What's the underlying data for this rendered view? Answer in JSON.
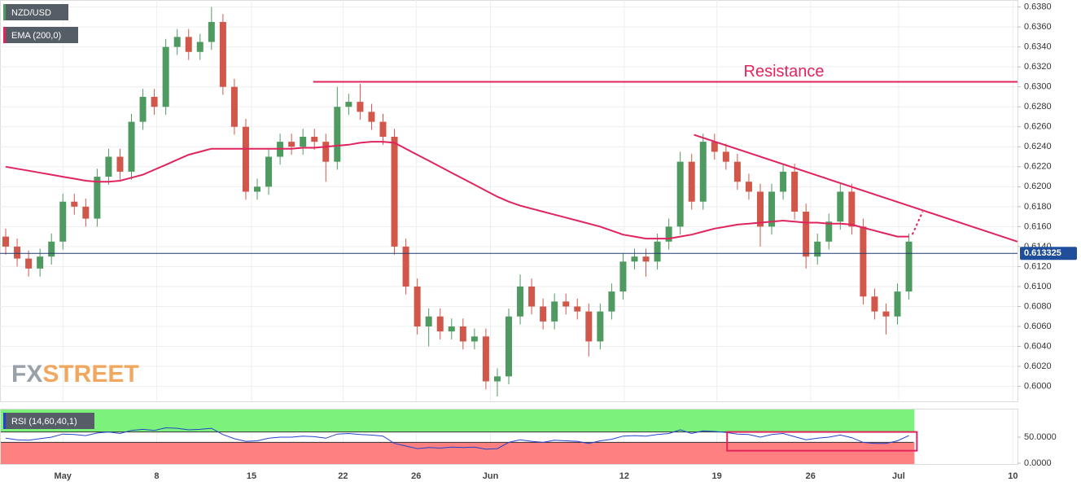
{
  "chart_data": {
    "type": "candlestick",
    "symbol": "NZD/USD",
    "up_color": "#4f9a60",
    "down_color": "#d2574b",
    "ohlc": {
      "open": [
        0.615,
        0.614,
        0.6128,
        0.6118,
        0.613,
        0.6145,
        0.6185,
        0.618,
        0.6168,
        0.621,
        0.623,
        0.6215,
        0.6265,
        0.629,
        0.628,
        0.634,
        0.635,
        0.6335,
        0.6345,
        0.6365,
        0.63,
        0.626,
        0.6195,
        0.62,
        0.623,
        0.6245,
        0.624,
        0.625,
        0.6245,
        0.6225,
        0.628,
        0.6285,
        0.6275,
        0.6265,
        0.625,
        0.614,
        0.61,
        0.606,
        0.607,
        0.6055,
        0.606,
        0.6045,
        0.605,
        0.6005,
        0.601,
        0.607,
        0.61,
        0.608,
        0.6065,
        0.6085,
        0.608,
        0.6075,
        0.6045,
        0.6075,
        0.6095,
        0.6125,
        0.613,
        0.6125,
        0.6145,
        0.616,
        0.6225,
        0.6185,
        0.6245,
        0.6235,
        0.6225,
        0.6205,
        0.6195,
        0.616,
        0.6195,
        0.6215,
        0.6175,
        0.613,
        0.6145,
        0.6165,
        0.6195,
        0.616,
        0.609,
        0.6075,
        0.607,
        0.6095
      ],
      "high": [
        0.6158,
        0.6148,
        0.6136,
        0.6138,
        0.6153,
        0.6193,
        0.6193,
        0.6188,
        0.6218,
        0.6238,
        0.6238,
        0.6273,
        0.6298,
        0.6298,
        0.6348,
        0.6358,
        0.6358,
        0.6353,
        0.638,
        0.6373,
        0.6308,
        0.6268,
        0.6208,
        0.6238,
        0.6253,
        0.6253,
        0.6258,
        0.6258,
        0.6253,
        0.63,
        0.6293,
        0.6303,
        0.6283,
        0.6273,
        0.6258,
        0.6148,
        0.6108,
        0.6078,
        0.6078,
        0.6068,
        0.6068,
        0.6058,
        0.6058,
        0.6018,
        0.6078,
        0.6112,
        0.6108,
        0.6088,
        0.6093,
        0.6093,
        0.6088,
        0.6083,
        0.6083,
        0.6103,
        0.6133,
        0.6138,
        0.6138,
        0.6153,
        0.6168,
        0.6235,
        0.6233,
        0.6253,
        0.6253,
        0.6243,
        0.6233,
        0.6213,
        0.6203,
        0.6203,
        0.6223,
        0.6223,
        0.6183,
        0.6153,
        0.6173,
        0.6203,
        0.6203,
        0.6168,
        0.6098,
        0.6083,
        0.6103,
        0.6153
      ],
      "low": [
        0.6132,
        0.612,
        0.611,
        0.611,
        0.6122,
        0.6137,
        0.6172,
        0.616,
        0.616,
        0.6202,
        0.6207,
        0.6207,
        0.6257,
        0.6272,
        0.6272,
        0.6332,
        0.6327,
        0.6327,
        0.6337,
        0.6292,
        0.6252,
        0.6187,
        0.6187,
        0.6192,
        0.6222,
        0.6232,
        0.6232,
        0.6237,
        0.6205,
        0.6217,
        0.6272,
        0.6267,
        0.6257,
        0.6242,
        0.6132,
        0.6092,
        0.6052,
        0.604,
        0.6047,
        0.6047,
        0.6037,
        0.6037,
        0.5997,
        0.599,
        0.6002,
        0.6062,
        0.6072,
        0.6057,
        0.6057,
        0.6072,
        0.6067,
        0.603,
        0.6037,
        0.6067,
        0.6087,
        0.6117,
        0.611,
        0.6117,
        0.6137,
        0.6152,
        0.6177,
        0.6177,
        0.6227,
        0.6217,
        0.6197,
        0.6187,
        0.614,
        0.6152,
        0.6187,
        0.6167,
        0.6118,
        0.6122,
        0.6137,
        0.6157,
        0.6152,
        0.6082,
        0.6067,
        0.6052,
        0.6062,
        0.6087
      ],
      "close": [
        0.614,
        0.6128,
        0.6118,
        0.613,
        0.6145,
        0.6185,
        0.618,
        0.6168,
        0.621,
        0.623,
        0.6215,
        0.6265,
        0.629,
        0.628,
        0.634,
        0.635,
        0.6335,
        0.6345,
        0.6365,
        0.63,
        0.626,
        0.6195,
        0.62,
        0.623,
        0.6245,
        0.624,
        0.625,
        0.6245,
        0.6225,
        0.628,
        0.6285,
        0.6275,
        0.6265,
        0.625,
        0.614,
        0.61,
        0.606,
        0.607,
        0.6055,
        0.606,
        0.6045,
        0.605,
        0.6005,
        0.601,
        0.607,
        0.61,
        0.608,
        0.6065,
        0.6085,
        0.608,
        0.6075,
        0.6045,
        0.6075,
        0.6095,
        0.6125,
        0.613,
        0.6125,
        0.6145,
        0.616,
        0.6225,
        0.6185,
        0.6245,
        0.6235,
        0.6225,
        0.6205,
        0.6195,
        0.616,
        0.6195,
        0.6215,
        0.6175,
        0.613,
        0.6145,
        0.6165,
        0.6195,
        0.616,
        0.609,
        0.6075,
        0.607,
        0.6095,
        0.6145
      ]
    },
    "ema": {
      "name": "EMA (200,0)",
      "color": "#e0245e",
      "values": [
        0.622,
        0.6218,
        0.6216,
        0.6214,
        0.6212,
        0.621,
        0.6208,
        0.6206,
        0.6205,
        0.6205,
        0.6206,
        0.6209,
        0.6212,
        0.6217,
        0.6222,
        0.6227,
        0.6232,
        0.6235,
        0.6238,
        0.6238,
        0.6238,
        0.6238,
        0.6238,
        0.6238,
        0.6238,
        0.6238,
        0.6239,
        0.6239,
        0.624,
        0.6241,
        0.6242,
        0.6244,
        0.6245,
        0.6245,
        0.6244,
        0.6238,
        0.6232,
        0.6226,
        0.622,
        0.6214,
        0.6208,
        0.6202,
        0.6196,
        0.619,
        0.6185,
        0.6181,
        0.6178,
        0.6175,
        0.6172,
        0.6169,
        0.6166,
        0.6163,
        0.616,
        0.6156,
        0.6152,
        0.615,
        0.6148,
        0.6148,
        0.6148,
        0.615,
        0.6152,
        0.6155,
        0.6158,
        0.616,
        0.6162,
        0.6163,
        0.6164,
        0.6165,
        0.6166,
        0.6165,
        0.6164,
        0.6164,
        0.6163,
        0.6163,
        0.6162,
        0.6159,
        0.6156,
        0.6153,
        0.615,
        0.615
      ]
    },
    "last_price": 0.613325,
    "xlim": [
      0,
      89
    ],
    "xticks": [
      {
        "value": 5.5,
        "label": "May"
      },
      {
        "value": 13.7,
        "label": "8"
      },
      {
        "value": 22,
        "label": "15"
      },
      {
        "value": 30,
        "label": "22"
      },
      {
        "value": 36.4,
        "label": "26"
      },
      {
        "value": 42.9,
        "label": "Jun"
      },
      {
        "value": 54.6,
        "label": "12"
      },
      {
        "value": 62.7,
        "label": "19"
      },
      {
        "value": 70.9,
        "label": "26"
      },
      {
        "value": 78.6,
        "label": "Jul"
      },
      {
        "value": 88.6,
        "label": "10"
      }
    ],
    "ylim": [
      0.5985,
      0.6387
    ],
    "yticks": [
      {
        "value": 0.6,
        "label": "0.6000"
      },
      {
        "value": 0.602,
        "label": "0.6020"
      },
      {
        "value": 0.604,
        "label": "0.6040"
      },
      {
        "value": 0.606,
        "label": "0.6060"
      },
      {
        "value": 0.608,
        "label": "0.6080"
      },
      {
        "value": 0.61,
        "label": "0.6100"
      },
      {
        "value": 0.612,
        "label": "0.6120"
      },
      {
        "value": 0.614,
        "label": "0.6140"
      },
      {
        "value": 0.616,
        "label": "0.6160"
      },
      {
        "value": 0.618,
        "label": "0.6180"
      },
      {
        "value": 0.62,
        "label": "0.6200"
      },
      {
        "value": 0.622,
        "label": "0.6220"
      },
      {
        "value": 0.624,
        "label": "0.6240"
      },
      {
        "value": 0.626,
        "label": "0.6260"
      },
      {
        "value": 0.628,
        "label": "0.6280"
      },
      {
        "value": 0.63,
        "label": "0.6300"
      },
      {
        "value": 0.632,
        "label": "0.6320"
      },
      {
        "value": 0.634,
        "label": "0.6340"
      },
      {
        "value": 0.636,
        "label": "0.6360"
      },
      {
        "value": 0.638,
        "label": "0.6380"
      }
    ],
    "grid": true,
    "resistance": {
      "label": "Resistance",
      "value": 0.6305,
      "x_start": 27.4,
      "color": "#e0245e"
    },
    "trendline": {
      "x": [
        60.7,
        89
      ],
      "y": [
        0.6252,
        0.6145
      ],
      "color": "#e0245e"
    },
    "projection": {
      "x": [
        79.8,
        80.7
      ],
      "y": [
        0.6152,
        0.6175
      ]
    },
    "rsi": {
      "name": "RSI (14,60,40,1)",
      "color": "#2244cc",
      "upper": 60,
      "lower": 40,
      "ylim": [
        0,
        100
      ],
      "yticks": [
        {
          "value": 50,
          "label": "50.0000"
        },
        {
          "value": 0,
          "label": "0.0000"
        }
      ],
      "values": [
        48,
        45,
        44,
        47,
        50,
        56,
        55,
        53,
        58,
        60,
        57,
        63,
        65,
        63,
        68,
        67,
        64,
        65,
        67,
        55,
        47,
        42,
        43,
        48,
        50,
        50,
        52,
        51,
        48,
        56,
        57,
        55,
        54,
        52,
        38,
        33,
        28,
        30,
        29,
        31,
        30,
        31,
        27,
        28,
        40,
        45,
        42,
        40,
        44,
        43,
        42,
        38,
        43,
        46,
        52,
        53,
        52,
        55,
        57,
        64,
        57,
        62,
        61,
        59,
        56,
        55,
        50,
        55,
        57,
        51,
        45,
        48,
        50,
        54,
        49,
        40,
        38,
        38,
        43,
        53
      ],
      "box": {
        "x": [
          63.6,
          80.2
        ],
        "y": [
          24,
          60
        ]
      }
    },
    "watermark": [
      "FX",
      "STREET"
    ]
  }
}
